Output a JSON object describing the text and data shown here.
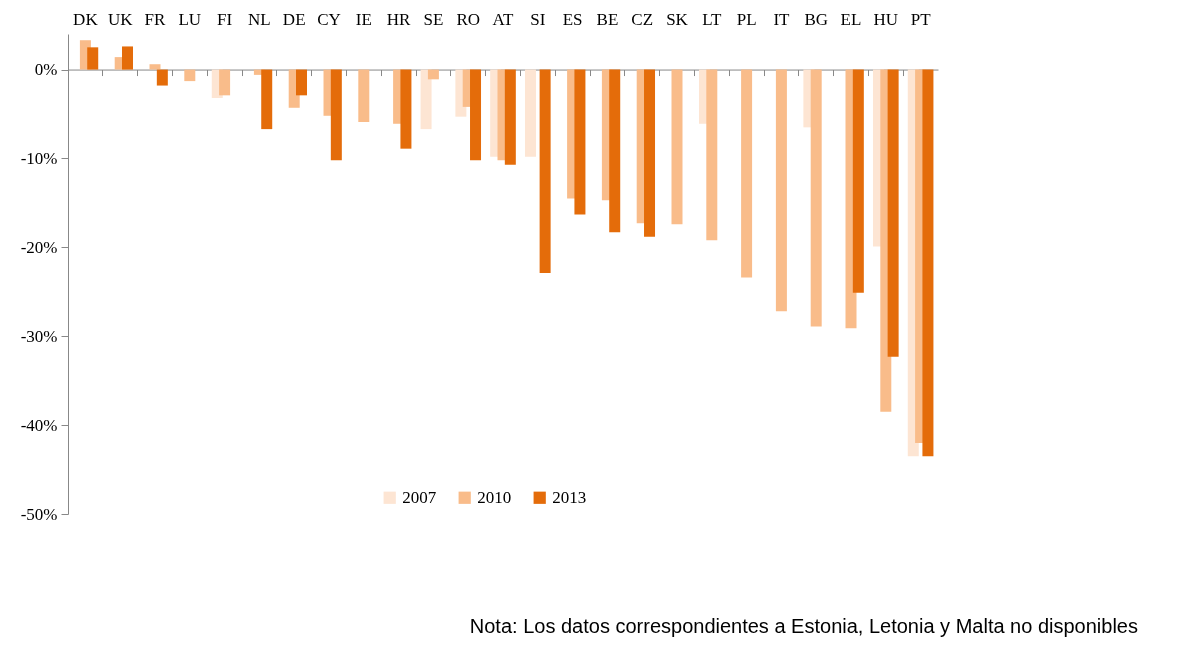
{
  "chart_data": {
    "type": "bar",
    "categories": [
      "DK",
      "UK",
      "FR",
      "LU",
      "FI",
      "NL",
      "DE",
      "CY",
      "IE",
      "HR",
      "SE",
      "RO",
      "AT",
      "SI",
      "ES",
      "BE",
      "CZ",
      "SK",
      "LT",
      "PL",
      "IT",
      "BG",
      "EL",
      "HU",
      "PT"
    ],
    "series": [
      {
        "name": "2007",
        "color": "#fde5d3",
        "values": [
          null,
          null,
          null,
          null,
          -3.2,
          null,
          null,
          null,
          null,
          null,
          -6.7,
          -5.3,
          -9.8,
          -9.8,
          null,
          null,
          null,
          null,
          -6.1,
          null,
          null,
          -6.5,
          null,
          -19.9,
          -43.5
        ]
      },
      {
        "name": "2010",
        "color": "#f9bc8a",
        "values": [
          3.3,
          1.4,
          0.6,
          -1.3,
          -2.9,
          -0.6,
          -4.3,
          -5.2,
          -5.9,
          -6.1,
          -1.1,
          -4.2,
          -10.2,
          null,
          -14.5,
          -14.7,
          -17.3,
          -17.4,
          -19.2,
          -23.4,
          -27.2,
          -28.9,
          -29.1,
          -38.5,
          -42.0
        ]
      },
      {
        "name": "2013",
        "color": "#e46c0a",
        "values": [
          2.5,
          2.6,
          -1.8,
          null,
          null,
          -6.7,
          -2.9,
          -10.2,
          null,
          -8.9,
          null,
          -10.2,
          -10.7,
          -22.9,
          -16.3,
          -18.3,
          -18.8,
          null,
          null,
          null,
          null,
          null,
          -25.1,
          -32.3,
          -43.5
        ]
      }
    ],
    "ylim": [
      -50,
      4
    ],
    "yticks": [
      {
        "value": -50,
        "label": "-50%"
      },
      {
        "value": -40,
        "label": "-40%"
      },
      {
        "value": -30,
        "label": "-30%"
      },
      {
        "value": -20,
        "label": "-20%"
      },
      {
        "value": -10,
        "label": "-10%"
      },
      {
        "value": 0,
        "label": "0%"
      }
    ],
    "grid": false,
    "legend": "bottom",
    "annotations": [
      "Nota: Los datos correspondientes a Estonia, Letonia y Malta no disponibles"
    ]
  }
}
